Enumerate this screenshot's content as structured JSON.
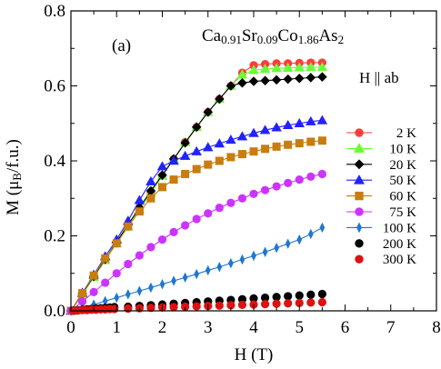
{
  "chart_data": {
    "type": "scatter",
    "panel_label": "(a)",
    "formula": {
      "parts": [
        {
          "text": "Ca",
          "sub": false
        },
        {
          "text": "0.91",
          "sub": true
        },
        {
          "text": "Sr",
          "sub": false
        },
        {
          "text": "0.09",
          "sub": true
        },
        {
          "text": "Co",
          "sub": false
        },
        {
          "text": "1.86",
          "sub": true
        },
        {
          "text": "As",
          "sub": false
        },
        {
          "text": "2",
          "sub": true
        }
      ]
    },
    "field_annotation": "H || ab",
    "xlabel": "H (T)",
    "ylabel": {
      "parts": [
        {
          "text": "M (",
          "greek": false
        },
        {
          "text": "μ",
          "greek": true
        },
        {
          "text": "B",
          "sub": true
        },
        {
          "text": "/f.u.)",
          "greek": false
        }
      ]
    },
    "xlim": [
      0,
      8
    ],
    "ylim": [
      0,
      0.8
    ],
    "xticks": [
      0,
      1,
      2,
      3,
      4,
      5,
      6,
      7,
      8
    ],
    "yticks": [
      0,
      0.2,
      0.4,
      0.6,
      0.8
    ],
    "xtick_labels": [
      "0",
      "1",
      "2",
      "3",
      "4",
      "5",
      "6",
      "7",
      "8"
    ],
    "ytick_labels": [
      "0.0",
      "0.2",
      "0.4",
      "0.6",
      "0.8"
    ],
    "grid": false,
    "legend_position": "right",
    "series": [
      {
        "name": "2 K",
        "marker": "circle",
        "color": "#ff3b3b",
        "line": true,
        "x": [
          0,
          0.25,
          0.5,
          0.75,
          1.0,
          1.25,
          1.5,
          1.75,
          2.0,
          2.25,
          2.5,
          2.75,
          3.0,
          3.25,
          3.5,
          3.75,
          4.0,
          4.25,
          4.5,
          4.75,
          5.0,
          5.25,
          5.5
        ],
        "y": [
          0,
          0.045,
          0.09,
          0.135,
          0.18,
          0.225,
          0.27,
          0.315,
          0.36,
          0.405,
          0.45,
          0.49,
          0.53,
          0.565,
          0.6,
          0.635,
          0.655,
          0.658,
          0.66,
          0.66,
          0.661,
          0.662,
          0.662
        ]
      },
      {
        "name": "10 K",
        "marker": "triangle-up",
        "color": "#66ff33",
        "line": true,
        "x": [
          0,
          0.25,
          0.5,
          0.75,
          1.0,
          1.25,
          1.5,
          1.75,
          2.0,
          2.25,
          2.5,
          2.75,
          3.0,
          3.25,
          3.5,
          3.75,
          4.0,
          4.25,
          4.5,
          4.75,
          5.0,
          5.25,
          5.5
        ],
        "y": [
          0,
          0.045,
          0.09,
          0.135,
          0.18,
          0.225,
          0.27,
          0.315,
          0.36,
          0.405,
          0.45,
          0.49,
          0.53,
          0.565,
          0.6,
          0.63,
          0.642,
          0.645,
          0.647,
          0.648,
          0.649,
          0.65,
          0.65
        ]
      },
      {
        "name": "20 K",
        "marker": "diamond",
        "color": "#000000",
        "line": true,
        "x": [
          0,
          0.25,
          0.5,
          0.75,
          1.0,
          1.25,
          1.5,
          1.75,
          2.0,
          2.25,
          2.5,
          2.75,
          3.0,
          3.25,
          3.5,
          3.75,
          4.0,
          4.25,
          4.5,
          4.75,
          5.0,
          5.25,
          5.5
        ],
        "y": [
          0,
          0.046,
          0.092,
          0.138,
          0.184,
          0.23,
          0.275,
          0.32,
          0.362,
          0.405,
          0.448,
          0.49,
          0.53,
          0.565,
          0.6,
          0.608,
          0.612,
          0.614,
          0.616,
          0.618,
          0.62,
          0.622,
          0.624
        ]
      },
      {
        "name": "50 K",
        "marker": "triangle-up",
        "color": "#2222ff",
        "line": true,
        "x": [
          0,
          0.25,
          0.5,
          0.75,
          1.0,
          1.25,
          1.5,
          1.75,
          2.0,
          2.25,
          2.5,
          2.75,
          3.0,
          3.25,
          3.5,
          3.75,
          4.0,
          4.25,
          4.5,
          4.75,
          5.0,
          5.25,
          5.5
        ],
        "y": [
          0,
          0.048,
          0.096,
          0.145,
          0.19,
          0.24,
          0.295,
          0.345,
          0.385,
          0.4,
          0.413,
          0.425,
          0.436,
          0.446,
          0.456,
          0.465,
          0.474,
          0.482,
          0.489,
          0.495,
          0.5,
          0.505,
          0.508
        ]
      },
      {
        "name": "60 K",
        "marker": "square",
        "color": "#c87d0e",
        "line": true,
        "x": [
          0,
          0.25,
          0.5,
          0.75,
          1.0,
          1.25,
          1.5,
          1.75,
          2.0,
          2.25,
          2.5,
          2.75,
          3.0,
          3.25,
          3.5,
          3.75,
          4.0,
          4.25,
          4.5,
          4.75,
          5.0,
          5.25,
          5.5
        ],
        "y": [
          0,
          0.047,
          0.094,
          0.14,
          0.18,
          0.225,
          0.265,
          0.3,
          0.33,
          0.35,
          0.365,
          0.378,
          0.39,
          0.4,
          0.41,
          0.418,
          0.425,
          0.432,
          0.438,
          0.443,
          0.447,
          0.451,
          0.454
        ]
      },
      {
        "name": "75 K",
        "marker": "circle",
        "color": "#cc33ff",
        "line": true,
        "x": [
          0,
          0.25,
          0.5,
          0.75,
          1.0,
          1.25,
          1.5,
          1.75,
          2.0,
          2.25,
          2.5,
          2.75,
          3.0,
          3.25,
          3.5,
          3.75,
          4.0,
          4.25,
          4.5,
          4.75,
          5.0,
          5.25,
          5.5
        ],
        "y": [
          0,
          0.025,
          0.05,
          0.075,
          0.1,
          0.125,
          0.148,
          0.17,
          0.19,
          0.21,
          0.228,
          0.245,
          0.26,
          0.275,
          0.288,
          0.3,
          0.312,
          0.322,
          0.332,
          0.341,
          0.35,
          0.358,
          0.365
        ]
      },
      {
        "name": "100 K",
        "marker": "thin-diamond",
        "color": "#1f77d4",
        "line": true,
        "x": [
          0,
          0.25,
          0.5,
          0.75,
          1.0,
          1.25,
          1.5,
          1.75,
          2.0,
          2.25,
          2.5,
          2.75,
          3.0,
          3.25,
          3.5,
          3.75,
          4.0,
          4.25,
          4.5,
          4.75,
          5.0,
          5.25,
          5.5
        ],
        "y": [
          0,
          0.008,
          0.017,
          0.026,
          0.035,
          0.044,
          0.053,
          0.062,
          0.071,
          0.08,
          0.089,
          0.098,
          0.108,
          0.117,
          0.127,
          0.137,
          0.147,
          0.157,
          0.168,
          0.179,
          0.19,
          0.205,
          0.222
        ]
      },
      {
        "name": "200 K",
        "marker": "circle",
        "color": "#000000",
        "line": false,
        "x": [
          0.05,
          0.15,
          0.25,
          0.35,
          0.45,
          0.55,
          0.65,
          0.75,
          0.85,
          0.95,
          1.25,
          1.5,
          1.75,
          2.0,
          2.25,
          2.5,
          2.75,
          3.0,
          3.25,
          3.5,
          3.75,
          4.0,
          4.25,
          4.5,
          4.75,
          5.0,
          5.25,
          5.5
        ],
        "y": [
          0.001,
          0.002,
          0.003,
          0.004,
          0.005,
          0.006,
          0.007,
          0.008,
          0.009,
          0.01,
          0.011,
          0.013,
          0.015,
          0.017,
          0.019,
          0.021,
          0.023,
          0.025,
          0.027,
          0.029,
          0.031,
          0.033,
          0.035,
          0.037,
          0.039,
          0.041,
          0.043,
          0.045
        ]
      },
      {
        "name": "300 K",
        "marker": "circle",
        "color": "#dd1111",
        "line": false,
        "x": [
          0.05,
          0.15,
          0.25,
          0.35,
          0.45,
          0.55,
          0.65,
          0.75,
          0.85,
          0.95,
          1.25,
          1.5,
          1.75,
          2.0,
          2.25,
          2.5,
          2.75,
          3.0,
          3.25,
          3.5,
          3.75,
          4.0,
          4.25,
          4.5,
          4.75,
          5.0,
          5.25,
          5.5
        ],
        "y": [
          0.0,
          0.001,
          0.002,
          0.002,
          0.003,
          0.003,
          0.004,
          0.004,
          0.005,
          0.005,
          0.006,
          0.007,
          0.008,
          0.009,
          0.01,
          0.011,
          0.012,
          0.013,
          0.014,
          0.015,
          0.016,
          0.017,
          0.018,
          0.019,
          0.02,
          0.021,
          0.022,
          0.023
        ]
      }
    ]
  }
}
